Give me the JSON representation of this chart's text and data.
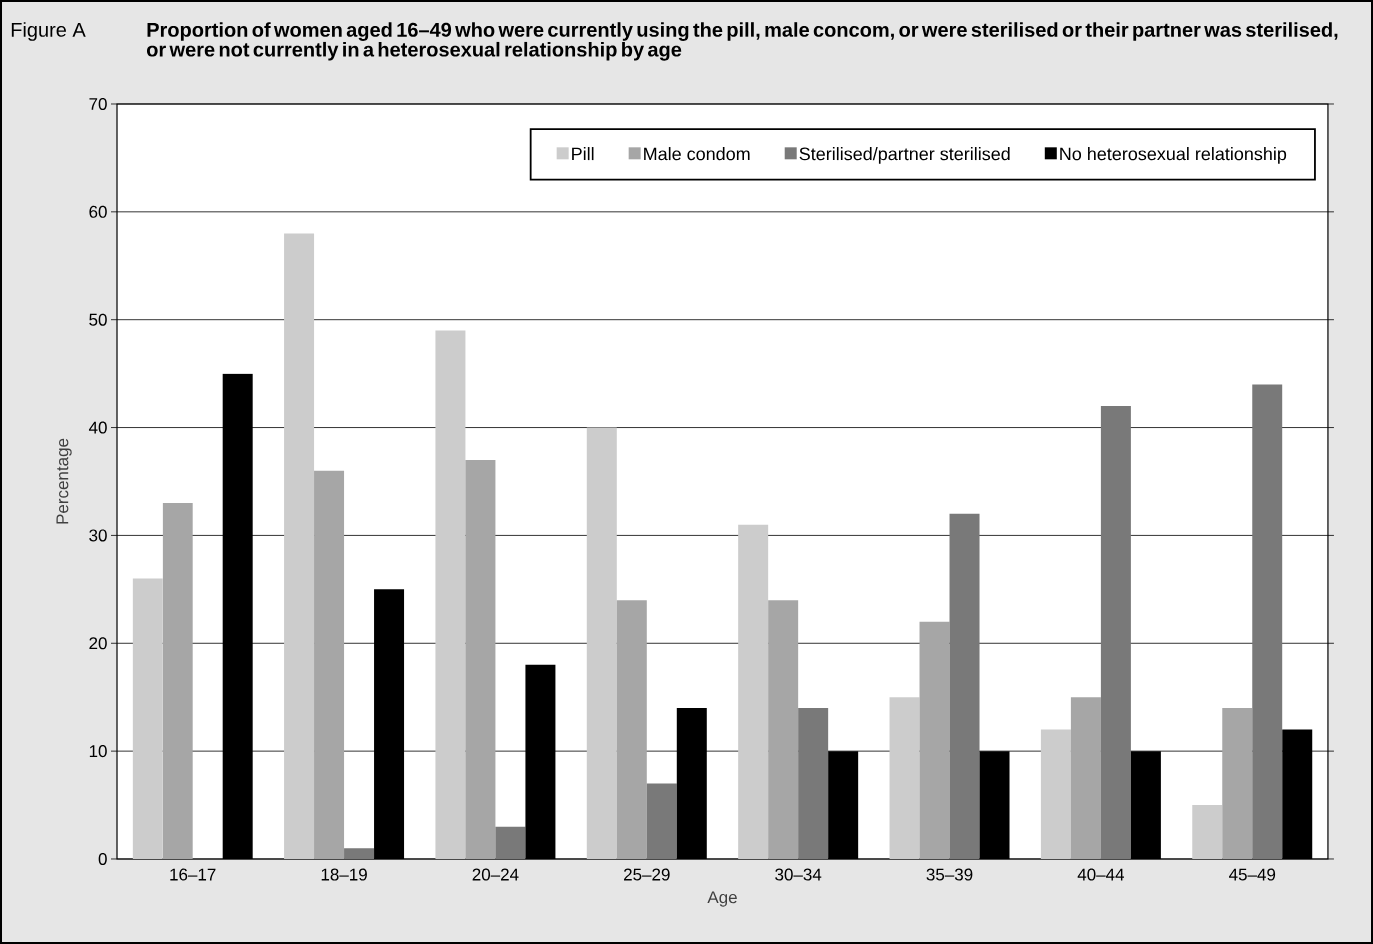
{
  "chart_data": {
    "type": "bar",
    "title": "Proportion of women aged 16–49 who were currently using the pill, male concom, or were sterilised or their partner was sterilised, or were not currently in a heterosexual relationship by age",
    "annotations": [
      "Figure A"
    ],
    "xlabel": "Age",
    "ylabel": "Percentage",
    "categories": [
      "16–17",
      "18–19",
      "20–24",
      "25–29",
      "30–34",
      "35–39",
      "40–44",
      "45–49"
    ],
    "series": [
      {
        "name": "Pill",
        "color": "#cccccc",
        "values": [
          26,
          58,
          49,
          40,
          31,
          15,
          12,
          5
        ]
      },
      {
        "name": "Male condom",
        "color": "#a6a6a6",
        "values": [
          33,
          36,
          37,
          24,
          24,
          22,
          15,
          14
        ]
      },
      {
        "name": "Sterilised/partner sterilised",
        "color": "#797979",
        "values": [
          null,
          1,
          3,
          7,
          14,
          32,
          42,
          44
        ]
      },
      {
        "name": "No heterosexual relationship",
        "color": "#000000",
        "values": [
          45,
          25,
          18,
          14,
          10,
          10,
          10,
          12
        ]
      }
    ],
    "ylim": [
      0,
      70
    ],
    "yticks": [
      0,
      10,
      20,
      30,
      40,
      50,
      60,
      70
    ],
    "grid": "y",
    "legend": "top right"
  }
}
